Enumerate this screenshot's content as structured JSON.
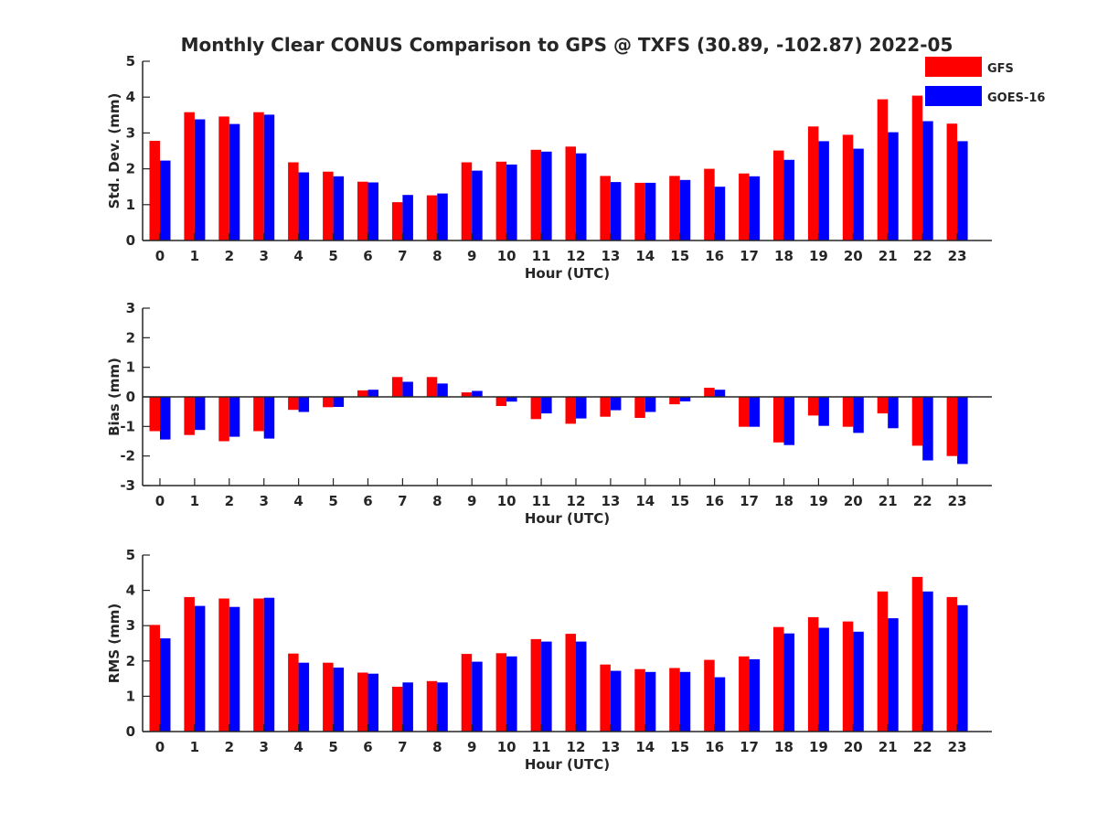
{
  "figure": {
    "title": "Monthly Clear CONUS Comparison to GPS @ TXFS (30.89, -102.87) 2022-05"
  },
  "legend": [
    {
      "name": "GFS",
      "color": "#ff0000"
    },
    {
      "name": "GOES-16",
      "color": "#0000ff"
    }
  ],
  "chart_data": [
    {
      "type": "bar",
      "title": "Monthly Clear CONUS Comparison to GPS @ TXFS (30.89, -102.87) 2022-05",
      "xlabel": "Hour (UTC)",
      "ylabel": "Std. Dev. (mm)",
      "ylim": [
        0,
        5
      ],
      "yticks": [
        0,
        1,
        2,
        3,
        4,
        5
      ],
      "grid": false,
      "legend_position": "top-right, outside plot",
      "categories": [
        "0",
        "1",
        "2",
        "3",
        "4",
        "5",
        "6",
        "7",
        "8",
        "9",
        "10",
        "11",
        "12",
        "13",
        "14",
        "15",
        "16",
        "17",
        "18",
        "19",
        "20",
        "21",
        "22",
        "23"
      ],
      "series": [
        {
          "name": "GFS",
          "color": "#ff0000",
          "values": [
            2.78,
            3.58,
            3.46,
            3.58,
            2.18,
            1.92,
            1.64,
            1.07,
            1.26,
            2.18,
            2.2,
            2.53,
            2.62,
            1.8,
            1.61,
            1.8,
            2.0,
            1.87,
            2.51,
            3.18,
            2.95,
            3.94,
            4.04,
            3.26
          ]
        },
        {
          "name": "GOES-16",
          "color": "#0000ff",
          "values": [
            2.23,
            3.38,
            3.25,
            3.51,
            1.9,
            1.79,
            1.62,
            1.27,
            1.31,
            1.95,
            2.12,
            2.48,
            2.43,
            1.63,
            1.61,
            1.69,
            1.5,
            1.79,
            2.25,
            2.77,
            2.56,
            3.02,
            3.33,
            2.77
          ]
        }
      ]
    },
    {
      "type": "bar",
      "xlabel": "Hour (UTC)",
      "ylabel": "Bias (mm)",
      "ylim": [
        -3,
        3
      ],
      "yticks": [
        -3,
        -2,
        -1,
        0,
        1,
        2,
        3
      ],
      "grid": false,
      "zero_line": true,
      "categories": [
        "0",
        "1",
        "2",
        "3",
        "4",
        "5",
        "6",
        "7",
        "8",
        "9",
        "10",
        "11",
        "12",
        "13",
        "14",
        "15",
        "16",
        "17",
        "18",
        "19",
        "20",
        "21",
        "22",
        "23"
      ],
      "series": [
        {
          "name": "GFS",
          "color": "#ff0000",
          "values": [
            -1.16,
            -1.29,
            -1.5,
            -1.16,
            -0.44,
            -0.35,
            0.22,
            0.67,
            0.67,
            0.15,
            -0.31,
            -0.75,
            -0.91,
            -0.67,
            -0.71,
            -0.25,
            0.31,
            -1.01,
            -1.54,
            -0.63,
            -1.01,
            -0.56,
            -1.65,
            -2.0
          ]
        },
        {
          "name": "GOES-16",
          "color": "#0000ff",
          "values": [
            -1.44,
            -1.12,
            -1.35,
            -1.41,
            -0.51,
            -0.34,
            0.24,
            0.51,
            0.45,
            0.2,
            -0.16,
            -0.56,
            -0.73,
            -0.45,
            -0.51,
            -0.15,
            0.24,
            -1.01,
            -1.63,
            -0.98,
            -1.22,
            -1.06,
            -2.15,
            -2.27
          ]
        }
      ]
    },
    {
      "type": "bar",
      "xlabel": "Hour (UTC)",
      "ylabel": "RMS (mm)",
      "ylim": [
        0,
        5
      ],
      "yticks": [
        0,
        1,
        2,
        3,
        4,
        5
      ],
      "grid": false,
      "categories": [
        "0",
        "1",
        "2",
        "3",
        "4",
        "5",
        "6",
        "7",
        "8",
        "9",
        "10",
        "11",
        "12",
        "13",
        "14",
        "15",
        "16",
        "17",
        "18",
        "19",
        "20",
        "21",
        "22",
        "23"
      ],
      "series": [
        {
          "name": "GFS",
          "color": "#ff0000",
          "values": [
            3.02,
            3.81,
            3.77,
            3.77,
            2.21,
            1.95,
            1.67,
            1.27,
            1.43,
            2.2,
            2.22,
            2.62,
            2.77,
            1.9,
            1.77,
            1.8,
            2.03,
            2.13,
            2.96,
            3.24,
            3.12,
            3.97,
            4.38,
            3.81
          ]
        },
        {
          "name": "GOES-16",
          "color": "#0000ff",
          "values": [
            2.64,
            3.56,
            3.53,
            3.79,
            1.95,
            1.81,
            1.64,
            1.39,
            1.39,
            1.98,
            2.13,
            2.55,
            2.55,
            1.72,
            1.69,
            1.69,
            1.54,
            2.05,
            2.78,
            2.94,
            2.83,
            3.21,
            3.97,
            3.58
          ]
        }
      ]
    }
  ]
}
